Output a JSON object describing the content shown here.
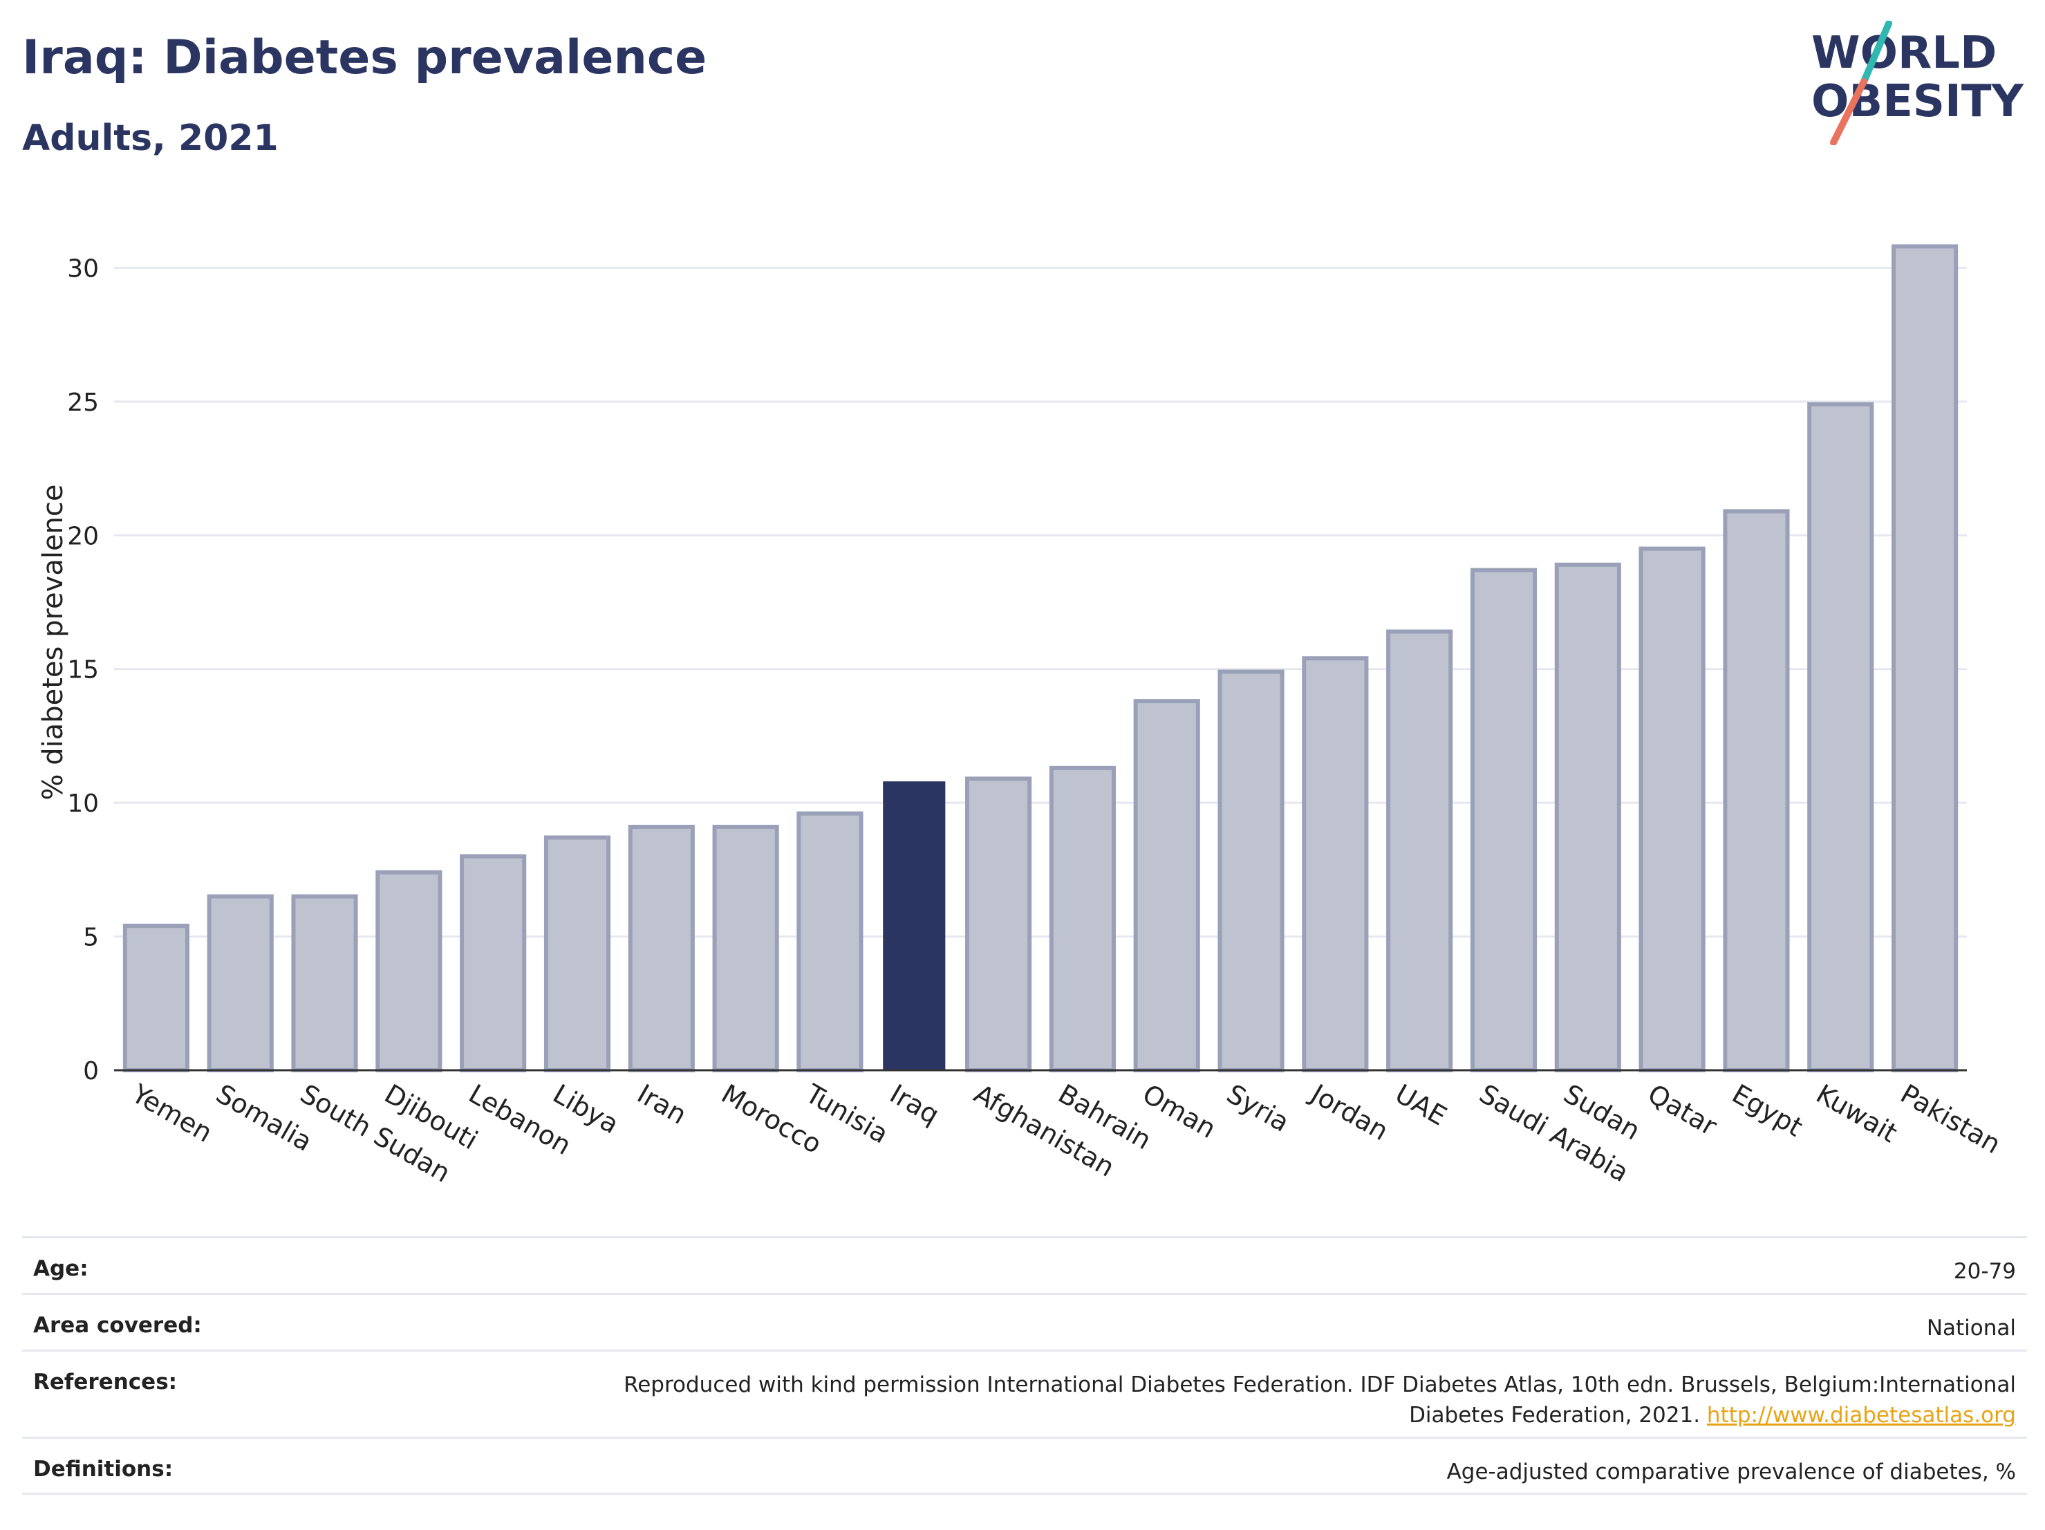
{
  "header": {
    "title": "Iraq: Diabetes prevalence",
    "subtitle": "Adults, 2021",
    "logo_line1": "WORLD",
    "logo_line2": "OBESITY"
  },
  "colors": {
    "highlight_bar": "#2b3561",
    "other_bar_fill": "#bfc3d0",
    "other_bar_stroke": "#9aa0b8",
    "title": "#2b3561",
    "link": "#e8a317",
    "logo_teal": "#2fb7b0",
    "logo_coral": "#e8735f"
  },
  "chart_data": {
    "type": "bar",
    "title": "Iraq: Diabetes prevalence",
    "subtitle": "Adults, 2021",
    "xlabel": "",
    "ylabel": "% diabetes prevalence",
    "ylim": [
      0,
      32
    ],
    "yticks": [
      0,
      5,
      10,
      15,
      20,
      25,
      30
    ],
    "grid": true,
    "highlight": "Iraq",
    "categories": [
      "Yemen",
      "Somalia",
      "South Sudan",
      "Djibouti",
      "Lebanon",
      "Libya",
      "Iran",
      "Morocco",
      "Tunisia",
      "Iraq",
      "Afghanistan",
      "Bahrain",
      "Oman",
      "Syria",
      "Jordan",
      "UAE",
      "Saudi Arabia",
      "Sudan",
      "Qatar",
      "Egypt",
      "Kuwait",
      "Pakistan"
    ],
    "values": [
      5.4,
      6.5,
      6.5,
      7.4,
      8.0,
      8.7,
      9.1,
      9.1,
      9.6,
      10.8,
      10.9,
      11.3,
      13.8,
      14.9,
      15.4,
      16.4,
      18.7,
      18.9,
      19.5,
      20.9,
      24.9,
      30.8
    ]
  },
  "footer": {
    "age_label": "Age:",
    "age_value": "20-79",
    "area_label": "Area covered:",
    "area_value": "National",
    "references_label": "References:",
    "references_text": "Reproduced with kind permission International Diabetes Federation.  IDF Diabetes Atlas, 10th edn. Brussels, Belgium:International Diabetes Federation, 2021. ",
    "references_link": "http://www.diabetesatlas.org",
    "definitions_label": "Definitions:",
    "definitions_value": "Age-adjusted comparative prevalence of diabetes, %"
  }
}
